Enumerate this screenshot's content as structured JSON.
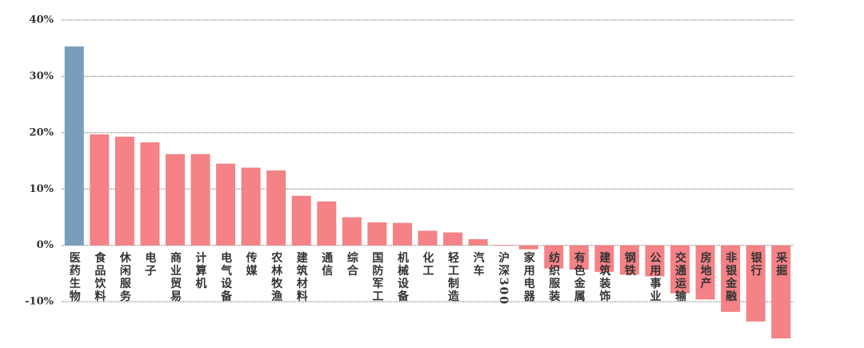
{
  "chart_data": {
    "type": "bar",
    "categories": [
      "医药生物",
      "食品饮料",
      "休闲服务",
      "电子",
      "商业贸易",
      "计算机",
      "电气设备",
      "传媒",
      "农林牧渔",
      "建筑材料",
      "通信",
      "综合",
      "国防军工",
      "机械设备",
      "化工",
      "轻工制造",
      "汽车",
      "沪深300",
      "家用电器",
      "纺织服装",
      "有色金属",
      "建筑装饰",
      "钢铁",
      "公用事业",
      "交通运输",
      "房地产",
      "非银金融",
      "银行",
      "采掘"
    ],
    "values": [
      35.3,
      19.7,
      19.3,
      18.3,
      16.2,
      16.2,
      14.5,
      13.8,
      13.3,
      8.8,
      7.8,
      5.0,
      4.1,
      4.0,
      2.6,
      2.3,
      1.1,
      0.1,
      -0.7,
      -4.1,
      -4.3,
      -4.7,
      -5.2,
      -5.5,
      -8.5,
      -9.6,
      -11.8,
      -13.5,
      -16.5
    ],
    "colors": [
      "#7b9dbd",
      "#f48286",
      "#f48286",
      "#f48286",
      "#f48286",
      "#f48286",
      "#f48286",
      "#f48286",
      "#f48286",
      "#f48286",
      "#f48286",
      "#f48286",
      "#f48286",
      "#f48286",
      "#f48286",
      "#f48286",
      "#f48286",
      "#f48286",
      "#f48286",
      "#f48286",
      "#f48286",
      "#f48286",
      "#f48286",
      "#f48286",
      "#f48286",
      "#f48286",
      "#f48286",
      "#f48286",
      "#f48286"
    ],
    "ylim": [
      -17.5,
      40
    ],
    "yticks": [
      {
        "value": -10,
        "label": "-10%"
      },
      {
        "value": 0,
        "label": "0%"
      },
      {
        "value": 10,
        "label": "10%"
      },
      {
        "value": 20,
        "label": "20%"
      },
      {
        "value": 30,
        "label": "30%"
      },
      {
        "value": 40,
        "label": "40%"
      }
    ],
    "grid": true
  }
}
